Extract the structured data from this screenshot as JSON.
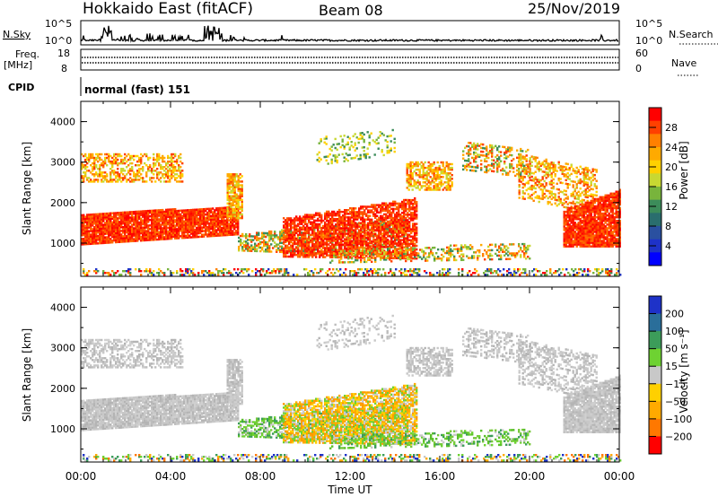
{
  "header": {
    "title": "Hokkaido East (fitACF)",
    "beam": "Beam 08",
    "date": "25/Nov/2019"
  },
  "summary": {
    "nsky_label": "N.Sky",
    "nsky_ticks": [
      "10^5",
      "10^0"
    ],
    "nsearch_label": "N.Search",
    "nsearch_ticks": [
      "10^5",
      "10^0"
    ],
    "freq_label_1": "Freq.",
    "freq_label_2": "[MHz]",
    "freq_ticks": [
      "18",
      "8"
    ],
    "nave_label": "Nave",
    "nave_ticks": [
      "60",
      "0"
    ],
    "cpid_label": "CPID",
    "cpid_value": "normal (fast) 151"
  },
  "chart_data": [
    {
      "type": "heatmap",
      "ylabel": "Slant Range [km]",
      "xlabel": "",
      "ylim": [
        180,
        4500
      ],
      "y_ticks": [
        "4000",
        "3000",
        "2000",
        "1000"
      ],
      "x_ticks": [],
      "colorbar": {
        "label": "Power [dB]",
        "ticks": [
          "28",
          "24",
          "20",
          "16",
          "12",
          "8",
          "4"
        ],
        "colors": [
          "#ff0000",
          "#ff4000",
          "#ff8000",
          "#ffaa00",
          "#ffd000",
          "#c8d832",
          "#78b43c",
          "#3c8c5a",
          "#2a6e6e",
          "#2a50a0",
          "#1e32c8",
          "#0000ff"
        ]
      }
    },
    {
      "type": "heatmap",
      "ylabel": "Slant Range [km]",
      "xlabel": "Time UT",
      "ylim": [
        180,
        4500
      ],
      "y_ticks": [
        "4000",
        "3000",
        "2000",
        "1000"
      ],
      "x_ticks": [
        "00:00",
        "04:00",
        "08:00",
        "12:00",
        "16:00",
        "20:00",
        "00:00"
      ],
      "colorbar": {
        "label": "Velocity [m s⁻¹]",
        "ticks": [
          "200",
          "100",
          "50",
          "15",
          "−15",
          "−50",
          "−100",
          "−200"
        ],
        "colors": [
          "#1e32c8",
          "#2a6e9a",
          "#3c9c5a",
          "#6ed232",
          "#c8c8c8",
          "#ffd000",
          "#ffaa00",
          "#ff7800",
          "#ff0000"
        ]
      }
    }
  ]
}
